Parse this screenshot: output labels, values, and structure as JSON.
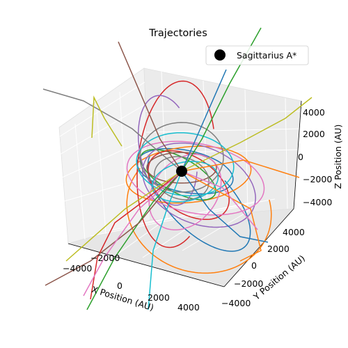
{
  "chart_data": {
    "type": "line3d",
    "title": "Trajectories",
    "xlabel": "X Position (AU)",
    "ylabel": "Y Position (AU)",
    "zlabel": "Z Position (AU)",
    "x_ticks": [
      "−4000",
      "−2000",
      "0",
      "2000",
      "4000"
    ],
    "y_ticks": [
      "−4000",
      "−2000",
      "0",
      "2000",
      "4000"
    ],
    "z_ticks": [
      "−4000",
      "−2000",
      "0",
      "2000",
      "4000"
    ],
    "legend": {
      "position": "top-right",
      "entries": [
        {
          "label": "Sagittarius A*",
          "color": "#000000"
        }
      ]
    },
    "central_object": {
      "name": "Sagittarius A*",
      "x": 0,
      "y": 0,
      "z": 0,
      "color": "#000000"
    },
    "series_colors": [
      "#1f77b4",
      "#ff7f0e",
      "#2ca02c",
      "#d62728",
      "#9467bd",
      "#8c564b",
      "#e377c2",
      "#7f7f7f",
      "#bcbd22",
      "#17becf"
    ]
  }
}
